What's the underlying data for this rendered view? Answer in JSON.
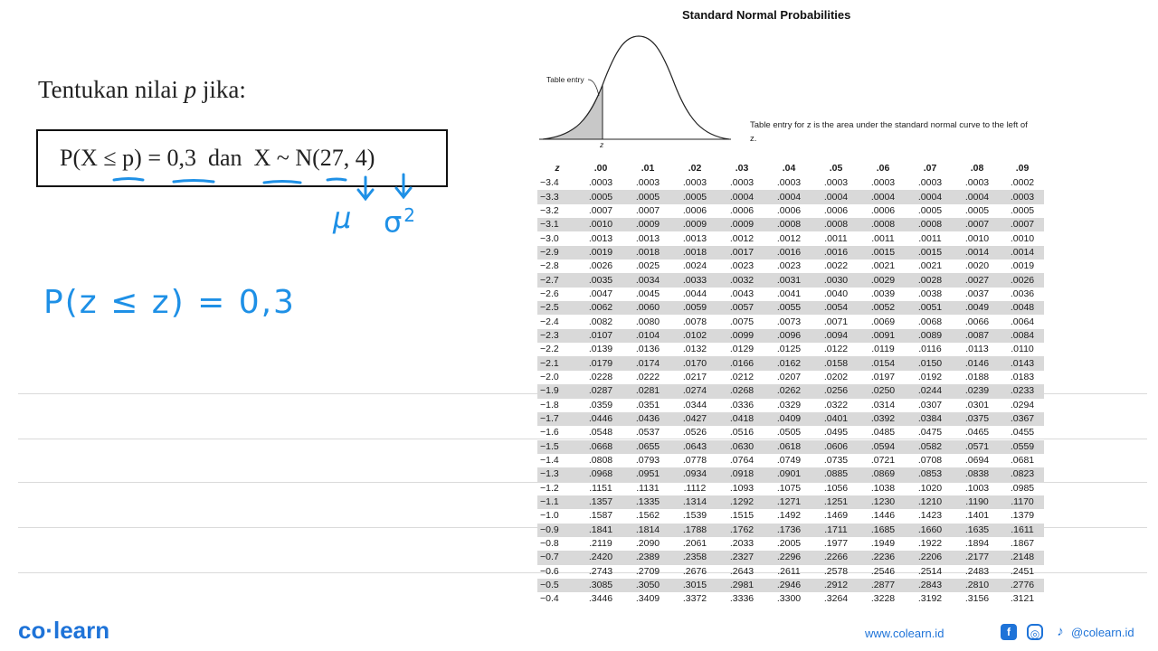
{
  "question": {
    "text_prefix": "Tentukan nilai",
    "var": "p",
    "text_suffix": "jika:"
  },
  "formula": "P(X ≤ p) = 0,3  dan  X ~ N(27, 4)",
  "handwriting": {
    "mu": "μ",
    "sigma": "σ",
    "sigma_exp": "2",
    "pz": "P(z ≤ z) = 0,3"
  },
  "table_title": "Standard Normal Probabilities",
  "diagram": {
    "table_entry_label": "Table entry",
    "z_label": "z"
  },
  "caption": "Table entry for z is the area under the standard normal curve to the left of z.",
  "table": {
    "headers": [
      "z",
      ".00",
      ".01",
      ".02",
      ".03",
      ".04",
      ".05",
      ".06",
      ".07",
      ".08",
      ".09"
    ],
    "rows": [
      [
        "−3.4",
        ".0003",
        ".0003",
        ".0003",
        ".0003",
        ".0003",
        ".0003",
        ".0003",
        ".0003",
        ".0003",
        ".0002"
      ],
      [
        "−3.3",
        ".0005",
        ".0005",
        ".0005",
        ".0004",
        ".0004",
        ".0004",
        ".0004",
        ".0004",
        ".0004",
        ".0003"
      ],
      [
        "−3.2",
        ".0007",
        ".0007",
        ".0006",
        ".0006",
        ".0006",
        ".0006",
        ".0006",
        ".0005",
        ".0005",
        ".0005"
      ],
      [
        "−3.1",
        ".0010",
        ".0009",
        ".0009",
        ".0009",
        ".0008",
        ".0008",
        ".0008",
        ".0008",
        ".0007",
        ".0007"
      ],
      [
        "−3.0",
        ".0013",
        ".0013",
        ".0013",
        ".0012",
        ".0012",
        ".0011",
        ".0011",
        ".0011",
        ".0010",
        ".0010"
      ],
      [
        "−2.9",
        ".0019",
        ".0018",
        ".0018",
        ".0017",
        ".0016",
        ".0016",
        ".0015",
        ".0015",
        ".0014",
        ".0014"
      ],
      [
        "−2.8",
        ".0026",
        ".0025",
        ".0024",
        ".0023",
        ".0023",
        ".0022",
        ".0021",
        ".0021",
        ".0020",
        ".0019"
      ],
      [
        "−2.7",
        ".0035",
        ".0034",
        ".0033",
        ".0032",
        ".0031",
        ".0030",
        ".0029",
        ".0028",
        ".0027",
        ".0026"
      ],
      [
        "−2.6",
        ".0047",
        ".0045",
        ".0044",
        ".0043",
        ".0041",
        ".0040",
        ".0039",
        ".0038",
        ".0037",
        ".0036"
      ],
      [
        "−2.5",
        ".0062",
        ".0060",
        ".0059",
        ".0057",
        ".0055",
        ".0054",
        ".0052",
        ".0051",
        ".0049",
        ".0048"
      ],
      [
        "−2.4",
        ".0082",
        ".0080",
        ".0078",
        ".0075",
        ".0073",
        ".0071",
        ".0069",
        ".0068",
        ".0066",
        ".0064"
      ],
      [
        "−2.3",
        ".0107",
        ".0104",
        ".0102",
        ".0099",
        ".0096",
        ".0094",
        ".0091",
        ".0089",
        ".0087",
        ".0084"
      ],
      [
        "−2.2",
        ".0139",
        ".0136",
        ".0132",
        ".0129",
        ".0125",
        ".0122",
        ".0119",
        ".0116",
        ".0113",
        ".0110"
      ],
      [
        "−2.1",
        ".0179",
        ".0174",
        ".0170",
        ".0166",
        ".0162",
        ".0158",
        ".0154",
        ".0150",
        ".0146",
        ".0143"
      ],
      [
        "−2.0",
        ".0228",
        ".0222",
        ".0217",
        ".0212",
        ".0207",
        ".0202",
        ".0197",
        ".0192",
        ".0188",
        ".0183"
      ],
      [
        "−1.9",
        ".0287",
        ".0281",
        ".0274",
        ".0268",
        ".0262",
        ".0256",
        ".0250",
        ".0244",
        ".0239",
        ".0233"
      ],
      [
        "−1.8",
        ".0359",
        ".0351",
        ".0344",
        ".0336",
        ".0329",
        ".0322",
        ".0314",
        ".0307",
        ".0301",
        ".0294"
      ],
      [
        "−1.7",
        ".0446",
        ".0436",
        ".0427",
        ".0418",
        ".0409",
        ".0401",
        ".0392",
        ".0384",
        ".0375",
        ".0367"
      ],
      [
        "−1.6",
        ".0548",
        ".0537",
        ".0526",
        ".0516",
        ".0505",
        ".0495",
        ".0485",
        ".0475",
        ".0465",
        ".0455"
      ],
      [
        "−1.5",
        ".0668",
        ".0655",
        ".0643",
        ".0630",
        ".0618",
        ".0606",
        ".0594",
        ".0582",
        ".0571",
        ".0559"
      ],
      [
        "−1.4",
        ".0808",
        ".0793",
        ".0778",
        ".0764",
        ".0749",
        ".0735",
        ".0721",
        ".0708",
        ".0694",
        ".0681"
      ],
      [
        "−1.3",
        ".0968",
        ".0951",
        ".0934",
        ".0918",
        ".0901",
        ".0885",
        ".0869",
        ".0853",
        ".0838",
        ".0823"
      ],
      [
        "−1.2",
        ".1151",
        ".1131",
        ".1112",
        ".1093",
        ".1075",
        ".1056",
        ".1038",
        ".1020",
        ".1003",
        ".0985"
      ],
      [
        "−1.1",
        ".1357",
        ".1335",
        ".1314",
        ".1292",
        ".1271",
        ".1251",
        ".1230",
        ".1210",
        ".1190",
        ".1170"
      ],
      [
        "−1.0",
        ".1587",
        ".1562",
        ".1539",
        ".1515",
        ".1492",
        ".1469",
        ".1446",
        ".1423",
        ".1401",
        ".1379"
      ],
      [
        "−0.9",
        ".1841",
        ".1814",
        ".1788",
        ".1762",
        ".1736",
        ".1711",
        ".1685",
        ".1660",
        ".1635",
        ".1611"
      ],
      [
        "−0.8",
        ".2119",
        ".2090",
        ".2061",
        ".2033",
        ".2005",
        ".1977",
        ".1949",
        ".1922",
        ".1894",
        ".1867"
      ],
      [
        "−0.7",
        ".2420",
        ".2389",
        ".2358",
        ".2327",
        ".2296",
        ".2266",
        ".2236",
        ".2206",
        ".2177",
        ".2148"
      ],
      [
        "−0.6",
        ".2743",
        ".2709",
        ".2676",
        ".2643",
        ".2611",
        ".2578",
        ".2546",
        ".2514",
        ".2483",
        ".2451"
      ],
      [
        "−0.5",
        ".3085",
        ".3050",
        ".3015",
        ".2981",
        ".2946",
        ".2912",
        ".2877",
        ".2843",
        ".2810",
        ".2776"
      ],
      [
        "−0.4",
        ".3446",
        ".3409",
        ".3372",
        ".3336",
        ".3300",
        ".3264",
        ".3228",
        ".3192",
        ".3156",
        ".3121"
      ]
    ]
  },
  "footer": {
    "logo": "co·learn",
    "url": "www.colearn.id",
    "facebook_glyph": "f",
    "instagram_glyph": "◎",
    "tiktok_glyph": "♪",
    "handle": "@colearn.id"
  }
}
